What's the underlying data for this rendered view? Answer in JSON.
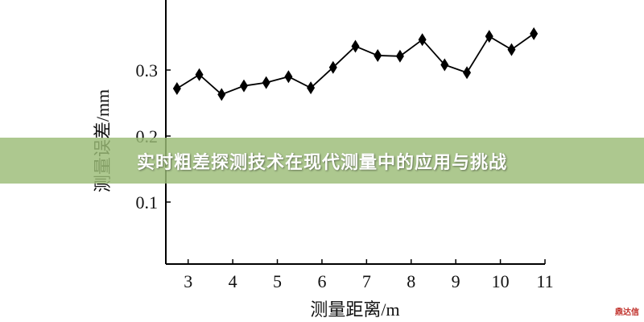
{
  "chart_data": {
    "type": "line",
    "title": "",
    "xlabel": "测量距离/m",
    "ylabel": "测量误差/mm",
    "xlim": [
      2.5,
      11
    ],
    "ylim": [
      0,
      0.4
    ],
    "xticks": [
      3,
      4,
      5,
      6,
      7,
      8,
      9,
      10,
      11
    ],
    "yticks": [
      0.1,
      0.2,
      0.3
    ],
    "ytick_labels": [
      "0.1",
      "0.2",
      "0.3"
    ],
    "grid": false,
    "marker": "diamond",
    "line_color": "#000000",
    "series": [
      {
        "x": [
          2.75,
          3.25,
          3.75,
          4.25,
          4.75,
          5.25,
          5.75,
          6.25,
          6.75,
          7.25,
          7.75,
          8.25,
          8.75,
          9.25,
          9.75,
          10.25,
          10.75
        ],
        "values": [
          0.272,
          0.293,
          0.263,
          0.276,
          0.281,
          0.29,
          0.273,
          0.304,
          0.336,
          0.322,
          0.321,
          0.346,
          0.308,
          0.296,
          0.351,
          0.331,
          0.355
        ]
      }
    ]
  },
  "banner": {
    "title": "实时粗差探测技术在现代测量中的应用与挑战",
    "color": "#9bbc76"
  },
  "watermark": {
    "text": "鼎达信",
    "color": "#c0302a"
  }
}
